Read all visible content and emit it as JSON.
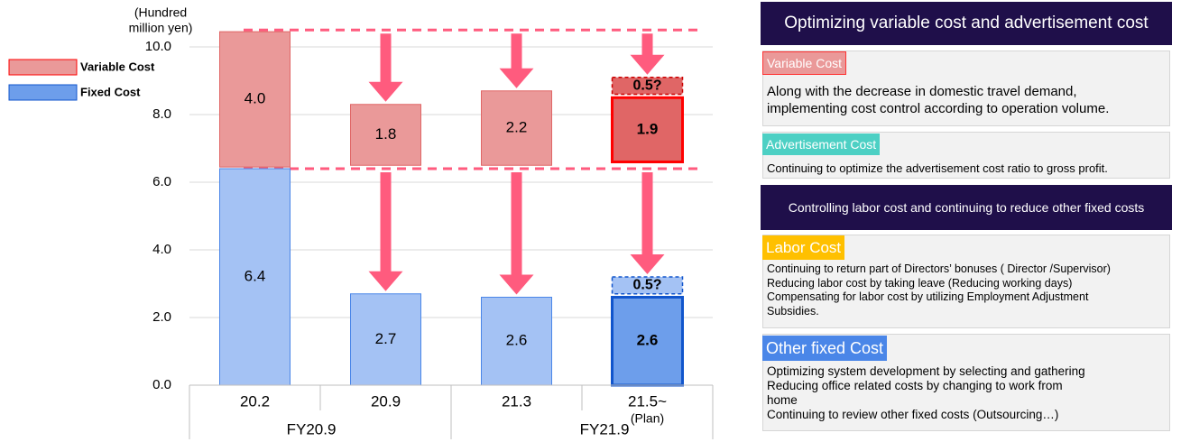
{
  "chart_data": {
    "type": "bar",
    "stacked": true,
    "unit_label": [
      "(Hundred",
      "million yen)"
    ],
    "ylim": [
      0,
      10
    ],
    "yticks": [
      "0.0",
      "2.0",
      "4.0",
      "6.0",
      "8.0",
      "10.0"
    ],
    "categories": [
      "20.2",
      "20.9",
      "21.3",
      "21.5~"
    ],
    "category_sublabels": [
      "",
      "",
      "",
      "(Plan)"
    ],
    "groups": [
      {
        "label": "FY20.9",
        "categories": [
          "20.2",
          "20.9"
        ]
      },
      {
        "label": "FY21.9",
        "categories": [
          "21.3",
          "21.5~"
        ]
      }
    ],
    "series": [
      {
        "name": "Fixed Cost",
        "values": [
          6.4,
          2.7,
          2.6,
          2.6
        ],
        "labels": [
          "6.4",
          "2.7",
          "2.6",
          "2.6"
        ],
        "color": "#a4c2f4",
        "border": "#4a86e8"
      },
      {
        "name": "Variable Cost",
        "values": [
          4.0,
          1.8,
          2.2,
          1.9
        ],
        "labels": [
          "4.0",
          "1.8",
          "2.2",
          "1.9"
        ],
        "color": "#ea9999",
        "border": "#e06666"
      }
    ],
    "highlight_colors": {
      "fixed": "#6d9eeb",
      "fixed_border": "#1155cc",
      "variable": "#e06666",
      "variable_border": "#ff0000"
    },
    "pending_reductions": [
      {
        "category": "21.5~",
        "series": "Fixed Cost",
        "value": 0.5,
        "label": "0.5?"
      },
      {
        "category": "21.5~",
        "series": "Variable Cost",
        "value": 0.5,
        "label": "0.5?"
      }
    ],
    "reference_lines": [
      10.5,
      6.4
    ],
    "arrow_color": "#ff5b7e",
    "legend": {
      "position": "top-left",
      "entries": [
        "Variable Cost",
        "Fixed Cost"
      ]
    }
  },
  "panel": {
    "header1": "Optimizing variable cost and advertisement cost",
    "sections1": [
      {
        "tag": "Variable Cost",
        "tag_color": "#ea9999",
        "lines": [
          "Along with the decrease in domestic travel demand,",
          "implementing cost control according to operation volume."
        ]
      },
      {
        "tag": "Advertisement Cost",
        "tag_color": "#4dd0c4",
        "lines": [
          "Continuing to optimize the advertisement cost ratio to gross profit."
        ]
      }
    ],
    "header2": "Controlling labor cost and continuing to reduce other fixed costs",
    "sections2": [
      {
        "tag": "Labor Cost",
        "tag_color": "#ffc000",
        "lines": [
          "Continuing to return part of Directors’ bonuses ( Director /Supervisor)",
          "Reducing labor cost by taking leave (Reducing working days)",
          "Compensating for labor cost by utilizing Employment Adjustment",
          "Subsidies."
        ]
      },
      {
        "tag": "Other fixed Cost",
        "tag_color": "#4a86e8",
        "lines": [
          "Optimizing system development by selecting and gathering",
          "Reducing office related costs by changing to work from",
          "home",
          "Continuing to review other fixed costs (Outsourcing…)"
        ]
      }
    ]
  }
}
